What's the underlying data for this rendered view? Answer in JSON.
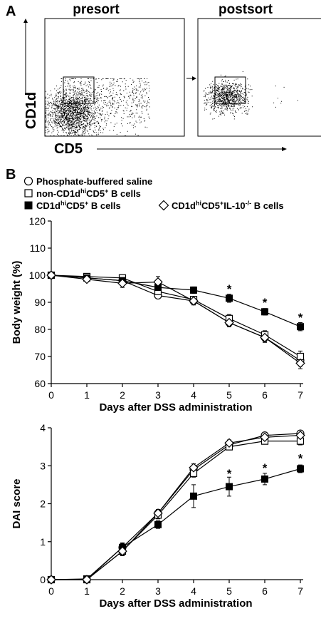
{
  "figure": {
    "panel_a_label": "A",
    "panel_b_label": "B"
  },
  "chart_data": [
    {
      "type": "scatter",
      "panel": "A",
      "subplots": [
        {
          "title": "presort",
          "gate": true,
          "density": "high"
        },
        {
          "title": "postsort",
          "gate": true,
          "density": "gated-population"
        }
      ],
      "xlabel": "CD5",
      "ylabel": "CD1d",
      "arrow": "presort-to-postsort"
    },
    {
      "type": "line",
      "panel": "B",
      "title": "",
      "x": [
        0,
        1,
        2,
        3,
        4,
        5,
        6,
        7
      ],
      "xlabel": "Days after DSS administration",
      "ylabel": "Body weight (%)",
      "ylim": [
        60,
        120
      ],
      "yticks": [
        60,
        70,
        80,
        90,
        100,
        110,
        120
      ],
      "xticks": [
        0,
        1,
        2,
        3,
        4,
        5,
        6,
        7
      ],
      "legend": {
        "placement": "top-left",
        "entries": [
          {
            "marker": "open-circle",
            "parts": [
              {
                "t": "Phosphate-buffered saline"
              }
            ]
          },
          {
            "marker": "open-square",
            "parts": [
              {
                "t": "non-CD1d"
              },
              {
                "t": "hi",
                "sup": true
              },
              {
                "t": "CD5"
              },
              {
                "t": "+",
                "sup": true
              },
              {
                "t": " B cells"
              }
            ]
          },
          {
            "marker": "filled-square",
            "parts": [
              {
                "t": "CD1d"
              },
              {
                "t": "hi",
                "sup": true
              },
              {
                "t": "CD5"
              },
              {
                "t": "+",
                "sup": true
              },
              {
                "t": " B cells"
              }
            ]
          },
          {
            "marker": "open-diamond",
            "parts": [
              {
                "t": "CD1d"
              },
              {
                "t": "hi",
                "sup": true
              },
              {
                "t": "CD5"
              },
              {
                "t": "+",
                "sup": true
              },
              {
                "t": "IL-10"
              },
              {
                "t": "-/-",
                "sup": true
              },
              {
                "t": " B cells"
              }
            ]
          }
        ]
      },
      "series": [
        {
          "marker": "open-circle",
          "values": [
            100,
            99,
            98,
            92.5,
            90.5,
            82.5,
            77,
            68.5
          ],
          "errors": [
            0.5,
            0.8,
            1.2,
            1.2,
            1.2,
            1.5,
            1.8,
            2
          ]
        },
        {
          "marker": "open-square",
          "values": [
            100,
            99.5,
            99,
            94,
            91,
            84,
            78,
            70
          ],
          "errors": [
            0.5,
            0.8,
            1,
            1.5,
            1.2,
            1.5,
            1.5,
            2
          ]
        },
        {
          "marker": "filled-square",
          "values": [
            100,
            99,
            98,
            95.5,
            94.5,
            91.5,
            86.5,
            81
          ],
          "errors": [
            0.5,
            0.8,
            1.5,
            2,
            1.2,
            1.5,
            1.2,
            1.5
          ]
        },
        {
          "marker": "open-diamond",
          "values": [
            100,
            98.5,
            97,
            97.5,
            90.5,
            82.5,
            77,
            67.5
          ],
          "errors": [
            0.5,
            1,
            1.5,
            2,
            1.5,
            1.5,
            1.5,
            2
          ]
        }
      ],
      "annotations": [
        {
          "x": 5,
          "y": 95,
          "text": "*"
        },
        {
          "x": 6,
          "y": 90,
          "text": "*"
        },
        {
          "x": 7,
          "y": 84.5,
          "text": "*"
        }
      ]
    },
    {
      "type": "line",
      "panel": "B",
      "title": "",
      "x": [
        0,
        1,
        2,
        3,
        4,
        5,
        6,
        7
      ],
      "xlabel": "Days after DSS administration",
      "ylabel": "DAI score",
      "ylim": [
        0,
        4
      ],
      "yticks": [
        0,
        1,
        2,
        3,
        4
      ],
      "xticks": [
        0,
        1,
        2,
        3,
        4,
        5,
        6,
        7
      ],
      "series": [
        {
          "marker": "open-circle",
          "values": [
            0,
            0,
            0.85,
            1.75,
            2.9,
            3.55,
            3.8,
            3.85
          ],
          "errors": [
            0.02,
            0.03,
            0.1,
            0.1,
            0.08,
            0.08,
            0.08,
            0.06
          ]
        },
        {
          "marker": "open-square",
          "values": [
            0,
            0,
            0.75,
            1.7,
            2.8,
            3.5,
            3.65,
            3.65
          ],
          "errors": [
            0.02,
            0.03,
            0.1,
            0.1,
            0.1,
            0.08,
            0.08,
            0.1
          ]
        },
        {
          "marker": "filled-square",
          "values": [
            0,
            0.02,
            0.85,
            1.45,
            2.2,
            2.45,
            2.65,
            2.92
          ],
          "errors": [
            0.02,
            0.04,
            0.12,
            0.1,
            0.3,
            0.25,
            0.15,
            0.1
          ]
        },
        {
          "marker": "open-diamond",
          "values": [
            0,
            0,
            0.75,
            1.75,
            2.95,
            3.6,
            3.75,
            3.8
          ],
          "errors": [
            0.02,
            0.03,
            0.12,
            0.1,
            0.1,
            0.08,
            0.08,
            0.06
          ]
        }
      ],
      "annotations": [
        {
          "x": 5,
          "y": 2.8,
          "text": "*"
        },
        {
          "x": 6,
          "y": 2.95,
          "text": "*"
        },
        {
          "x": 7,
          "y": 3.2,
          "text": "*"
        }
      ]
    }
  ]
}
